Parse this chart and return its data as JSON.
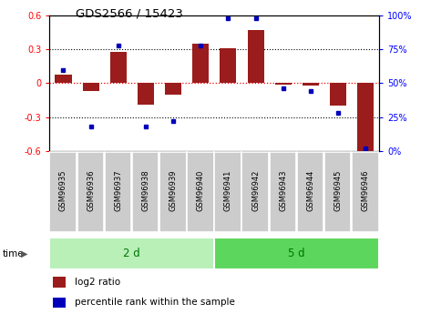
{
  "title": "GDS2566 / 15423",
  "samples": [
    "GSM96935",
    "GSM96936",
    "GSM96937",
    "GSM96938",
    "GSM96939",
    "GSM96940",
    "GSM96941",
    "GSM96942",
    "GSM96943",
    "GSM96944",
    "GSM96945",
    "GSM96946"
  ],
  "log2_ratio": [
    0.08,
    -0.07,
    0.28,
    -0.19,
    -0.1,
    0.35,
    0.31,
    0.47,
    -0.01,
    -0.02,
    -0.2,
    -0.6
  ],
  "percentile_rank": [
    60,
    18,
    78,
    18,
    22,
    78,
    98,
    98,
    46,
    44,
    28,
    2
  ],
  "groups": [
    {
      "label": "2 d",
      "start": 0,
      "end": 6,
      "color": "#b8f0b8"
    },
    {
      "label": "5 d",
      "start": 6,
      "end": 12,
      "color": "#5cd65c"
    }
  ],
  "bar_color": "#9B1C1C",
  "dot_color": "#0000BB",
  "ylim_left": [
    -0.6,
    0.6
  ],
  "ylim_right": [
    0,
    100
  ],
  "yticks_left": [
    -0.6,
    -0.3,
    0.0,
    0.3,
    0.6
  ],
  "yticks_right": [
    0,
    25,
    50,
    75,
    100
  ],
  "ytick_labels_left": [
    "-0.6",
    "-0.3",
    "0",
    "0.3",
    "0.6"
  ],
  "ytick_labels_right": [
    "0%",
    "25%",
    "50%",
    "75%",
    "100%"
  ],
  "hline_color": "#FF0000",
  "dotted_line_color": "#000000",
  "legend_bar_label": "log2 ratio",
  "legend_dot_label": "percentile rank within the sample",
  "time_label": "time",
  "group_label_color": "#007700",
  "sample_box_color": "#cccccc",
  "background_color": "#ffffff"
}
